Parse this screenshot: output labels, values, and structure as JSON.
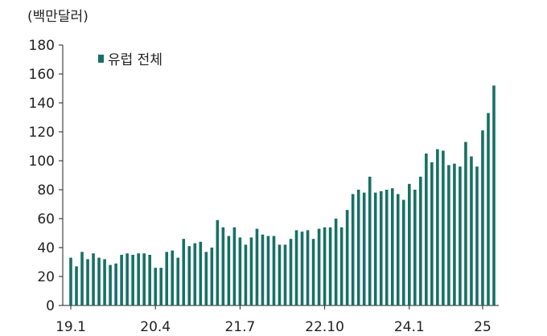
{
  "chart_data": {
    "type": "bar",
    "unit_label": "(백만달러)",
    "title": "",
    "xlabel": "",
    "ylabel": "",
    "ylim": [
      0,
      180
    ],
    "y_ticks": [
      0,
      20,
      40,
      60,
      80,
      100,
      120,
      140,
      160,
      180
    ],
    "x_tick_labels": [
      "19.1",
      "20.4",
      "21.7",
      "22.10",
      "24.1",
      "25"
    ],
    "x_tick_category_index": [
      0,
      15,
      30,
      45,
      60,
      73
    ],
    "grid": false,
    "legend_position": "top-left",
    "color": "#177065",
    "series": [
      {
        "name": "유럽 전체",
        "values": [
          33,
          27,
          37,
          32,
          36,
          33,
          32,
          28,
          29,
          35,
          36,
          35,
          36,
          36,
          35,
          26,
          26,
          37,
          38,
          33,
          46,
          41,
          43,
          44,
          37,
          40,
          59,
          54,
          48,
          54,
          47,
          42,
          47,
          53,
          49,
          48,
          48,
          42,
          42,
          46,
          52,
          51,
          52,
          46,
          53,
          54,
          54,
          60,
          54,
          66,
          77,
          80,
          78,
          89,
          78,
          79,
          80,
          81,
          77,
          73,
          84,
          80,
          89,
          105,
          99,
          108,
          107,
          97,
          98,
          96,
          113,
          103,
          96,
          121,
          133,
          152
        ]
      }
    ]
  }
}
